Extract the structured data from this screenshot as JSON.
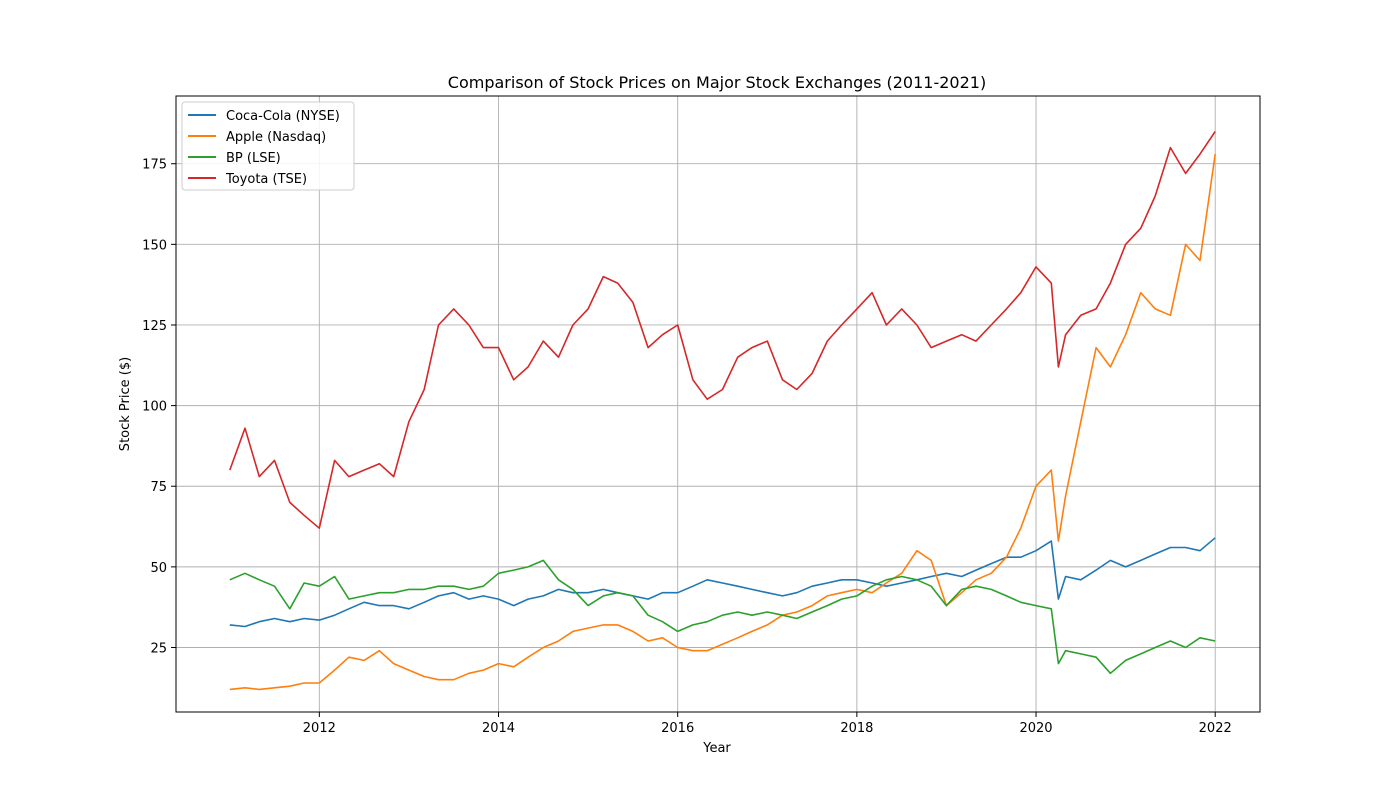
{
  "chart_data": {
    "type": "line",
    "title": "Comparison of Stock Prices on Major Stock Exchanges (2011-2021)",
    "xlabel": "Year",
    "ylabel": "Stock Price ($)",
    "xlim": [
      2010.4,
      2022.5
    ],
    "ylim": [
      5,
      196
    ],
    "x_ticks": [
      2012,
      2014,
      2016,
      2018,
      2020,
      2022
    ],
    "y_ticks": [
      25,
      50,
      75,
      100,
      125,
      150,
      175
    ],
    "grid": true,
    "legend_position": "upper left",
    "x": [
      2011.0,
      2011.17,
      2011.33,
      2011.5,
      2011.67,
      2011.83,
      2012.0,
      2012.17,
      2012.33,
      2012.5,
      2012.67,
      2012.83,
      2013.0,
      2013.17,
      2013.33,
      2013.5,
      2013.67,
      2013.83,
      2014.0,
      2014.17,
      2014.33,
      2014.5,
      2014.67,
      2014.83,
      2015.0,
      2015.17,
      2015.33,
      2015.5,
      2015.67,
      2015.83,
      2016.0,
      2016.17,
      2016.33,
      2016.5,
      2016.67,
      2016.83,
      2017.0,
      2017.17,
      2017.33,
      2017.5,
      2017.67,
      2017.83,
      2018.0,
      2018.17,
      2018.33,
      2018.5,
      2018.67,
      2018.83,
      2019.0,
      2019.17,
      2019.33,
      2019.5,
      2019.67,
      2019.83,
      2020.0,
      2020.17,
      2020.25,
      2020.33,
      2020.5,
      2020.67,
      2020.83,
      2021.0,
      2021.17,
      2021.33,
      2021.5,
      2021.67,
      2021.83,
      2022.0
    ],
    "series": [
      {
        "name": "Coca-Cola (NYSE)",
        "color": "#1f77b4",
        "values": [
          32,
          31.5,
          33,
          34,
          33,
          34,
          33.5,
          35,
          37,
          39,
          38,
          38,
          37,
          39,
          41,
          42,
          40,
          41,
          40,
          38,
          40,
          41,
          43,
          42,
          42,
          43,
          42,
          41,
          40,
          42,
          42,
          44,
          46,
          45,
          44,
          43,
          42,
          41,
          42,
          44,
          45,
          46,
          46,
          45,
          44,
          45,
          46,
          47,
          48,
          47,
          49,
          51,
          53,
          53,
          55,
          58,
          40,
          47,
          46,
          49,
          52,
          50,
          52,
          54,
          56,
          56,
          55,
          59
        ]
      },
      {
        "name": "Apple (Nasdaq)",
        "color": "#ff7f0e",
        "values": [
          12,
          12.5,
          12,
          12.5,
          13,
          14,
          14,
          18,
          22,
          21,
          24,
          20,
          18,
          16,
          15,
          15,
          17,
          18,
          20,
          19,
          22,
          25,
          27,
          30,
          31,
          32,
          32,
          30,
          27,
          28,
          25,
          24,
          24,
          26,
          28,
          30,
          32,
          35,
          36,
          38,
          41,
          42,
          43,
          42,
          45,
          48,
          55,
          52,
          38,
          42,
          46,
          48,
          53,
          62,
          75,
          80,
          58,
          72,
          95,
          118,
          112,
          122,
          135,
          130,
          128,
          150,
          145,
          178
        ]
      },
      {
        "name": "BP (LSE)",
        "color": "#2ca02c",
        "values": [
          46,
          48,
          46,
          44,
          37,
          45,
          44,
          47,
          40,
          41,
          42,
          42,
          43,
          43,
          44,
          44,
          43,
          44,
          48,
          49,
          50,
          52,
          46,
          43,
          38,
          41,
          42,
          41,
          35,
          33,
          30,
          32,
          33,
          35,
          36,
          35,
          36,
          35,
          34,
          36,
          38,
          40,
          41,
          44,
          46,
          47,
          46,
          44,
          38,
          43,
          44,
          43,
          41,
          39,
          38,
          37,
          20,
          24,
          23,
          22,
          17,
          21,
          23,
          25,
          27,
          25,
          28,
          27
        ]
      },
      {
        "name": "Toyota (TSE)",
        "color": "#d62728",
        "values": [
          80,
          93,
          78,
          83,
          70,
          66,
          62,
          83,
          78,
          80,
          82,
          78,
          95,
          105,
          125,
          130,
          125,
          118,
          118,
          108,
          112,
          120,
          115,
          125,
          130,
          140,
          138,
          132,
          118,
          122,
          125,
          108,
          102,
          105,
          115,
          118,
          120,
          108,
          105,
          110,
          120,
          125,
          130,
          135,
          125,
          130,
          125,
          118,
          120,
          122,
          120,
          125,
          130,
          135,
          143,
          138,
          112,
          122,
          128,
          130,
          138,
          150,
          155,
          165,
          180,
          172,
          178,
          185
        ]
      }
    ]
  }
}
